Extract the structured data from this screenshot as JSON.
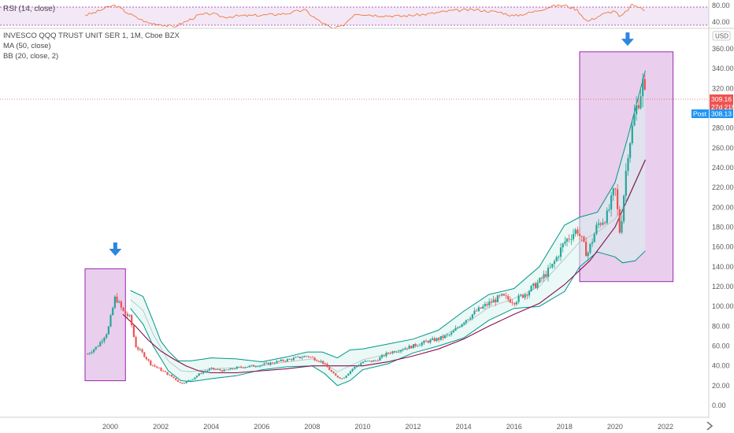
{
  "rsi": {
    "label": "RSI (14, close)",
    "ticks": [
      "80.00",
      "40.00"
    ],
    "color": "#f0783c",
    "band_color": "#9c27b0"
  },
  "legend": {
    "title": "INVESCO QQQ TRUST UNIT SER 1, 1M, Cboe BZX",
    "ma": "MA (50, close)",
    "bb": "BB (20, close, 2)"
  },
  "price_axis": {
    "currency": "USD",
    "last_price": "309.16",
    "countdown": "27d 21h",
    "post_label": "Post",
    "post_price": "308.13",
    "last_color": "#ef5350",
    "post_color": "#2196f3"
  },
  "colors": {
    "up": "#26a69a",
    "down": "#ef5350",
    "ma": "#880e4f",
    "bb_band": "#009688",
    "bb_fill": "#d9f2ef",
    "highlight_fill": "#e1bee7",
    "highlight_stroke": "#9c27b0",
    "arrow": "#2e86de"
  },
  "chart_data": {
    "type": "candlestick",
    "title": "INVESCO QQQ TRUST UNIT SER 1, 1M, Cboe BZX",
    "x_ticks": [
      "2000",
      "2002",
      "2004",
      "2006",
      "2008",
      "2010",
      "2012",
      "2014",
      "2016",
      "2018",
      "2020",
      "2022"
    ],
    "y_ticks": [
      "0.00",
      "20.00",
      "40.00",
      "60.00",
      "80.00",
      "100.00",
      "120.00",
      "140.00",
      "160.00",
      "180.00",
      "200.00",
      "220.00",
      "240.00",
      "260.00",
      "280.00",
      "300.00",
      "320.00",
      "340.00",
      "360.00"
    ],
    "x_range": [
      1998.7,
      2023.2
    ],
    "y_range": [
      -10,
      370
    ],
    "close_series": [
      [
        1999.1,
        52
      ],
      [
        1999.5,
        60
      ],
      [
        1999.9,
        75
      ],
      [
        2000.2,
        110
      ],
      [
        2000.5,
        95
      ],
      [
        2000.8,
        88
      ],
      [
        2001.0,
        60
      ],
      [
        2001.3,
        52
      ],
      [
        2001.6,
        42
      ],
      [
        2002.0,
        36
      ],
      [
        2002.5,
        28
      ],
      [
        2002.8,
        22
      ],
      [
        2003.2,
        26
      ],
      [
        2003.6,
        33
      ],
      [
        2004.0,
        37
      ],
      [
        2004.5,
        35
      ],
      [
        2005.0,
        38
      ],
      [
        2006.0,
        41
      ],
      [
        2007.0,
        46
      ],
      [
        2007.8,
        50
      ],
      [
        2008.4,
        44
      ],
      [
        2008.9,
        30
      ],
      [
        2009.2,
        27
      ],
      [
        2009.6,
        37
      ],
      [
        2010.0,
        44
      ],
      [
        2010.5,
        45
      ],
      [
        2011.0,
        53
      ],
      [
        2012.0,
        60
      ],
      [
        2012.6,
        65
      ],
      [
        2013.0,
        67
      ],
      [
        2013.5,
        72
      ],
      [
        2014.0,
        85
      ],
      [
        2014.5,
        95
      ],
      [
        2015.0,
        103
      ],
      [
        2015.5,
        110
      ],
      [
        2016.0,
        105
      ],
      [
        2016.5,
        114
      ],
      [
        2017.0,
        125
      ],
      [
        2017.5,
        140
      ],
      [
        2018.0,
        165
      ],
      [
        2018.5,
        178
      ],
      [
        2018.9,
        152
      ],
      [
        2019.3,
        182
      ],
      [
        2019.7,
        192
      ],
      [
        2020.0,
        220
      ],
      [
        2020.2,
        172
      ],
      [
        2020.5,
        255
      ],
      [
        2020.8,
        296
      ],
      [
        2021.0,
        315
      ],
      [
        2021.1,
        325
      ],
      [
        2021.2,
        309
      ]
    ],
    "ma_series": [
      [
        2000.5,
        92
      ],
      [
        2001.0,
        80
      ],
      [
        2001.5,
        66
      ],
      [
        2002.0,
        55
      ],
      [
        2002.5,
        47
      ],
      [
        2003.0,
        40
      ],
      [
        2003.5,
        35
      ],
      [
        2004.0,
        33
      ],
      [
        2005.0,
        33
      ],
      [
        2006.0,
        35
      ],
      [
        2007.0,
        37
      ],
      [
        2008.0,
        40
      ],
      [
        2009.0,
        40
      ],
      [
        2010.0,
        40
      ],
      [
        2011.0,
        44
      ],
      [
        2012.0,
        50
      ],
      [
        2013.0,
        57
      ],
      [
        2014.0,
        67
      ],
      [
        2015.0,
        80
      ],
      [
        2016.0,
        92
      ],
      [
        2017.0,
        103
      ],
      [
        2018.0,
        122
      ],
      [
        2019.0,
        146
      ],
      [
        2020.0,
        180
      ],
      [
        2021.2,
        248
      ]
    ],
    "bb_upper": [
      [
        2000.8,
        116
      ],
      [
        2001.3,
        110
      ],
      [
        2001.7,
        85
      ],
      [
        2002.0,
        65
      ],
      [
        2002.3,
        55
      ],
      [
        2002.7,
        45
      ],
      [
        2003.2,
        45
      ],
      [
        2004.0,
        48
      ],
      [
        2005.0,
        47
      ],
      [
        2006.0,
        44
      ],
      [
        2007.0,
        49
      ],
      [
        2007.8,
        54
      ],
      [
        2008.4,
        54
      ],
      [
        2009.0,
        48
      ],
      [
        2009.5,
        56
      ],
      [
        2010.0,
        57
      ],
      [
        2011.0,
        62
      ],
      [
        2012.0,
        67
      ],
      [
        2013.0,
        76
      ],
      [
        2014.0,
        95
      ],
      [
        2015.0,
        112
      ],
      [
        2016.0,
        118
      ],
      [
        2017.0,
        140
      ],
      [
        2018.0,
        182
      ],
      [
        2018.6,
        190
      ],
      [
        2019.3,
        195
      ],
      [
        2020.0,
        225
      ],
      [
        2020.5,
        270
      ],
      [
        2021.2,
        338
      ]
    ],
    "bb_lower": [
      [
        2000.8,
        98
      ],
      [
        2001.3,
        82
      ],
      [
        2001.7,
        60
      ],
      [
        2002.3,
        35
      ],
      [
        2002.8,
        25
      ],
      [
        2003.2,
        24
      ],
      [
        2004.0,
        27
      ],
      [
        2005.0,
        30
      ],
      [
        2006.0,
        36
      ],
      [
        2007.0,
        39
      ],
      [
        2008.0,
        40
      ],
      [
        2008.5,
        32
      ],
      [
        2009.0,
        20
      ],
      [
        2009.5,
        25
      ],
      [
        2010.0,
        36
      ],
      [
        2011.0,
        42
      ],
      [
        2012.0,
        53
      ],
      [
        2013.0,
        60
      ],
      [
        2014.0,
        68
      ],
      [
        2015.0,
        86
      ],
      [
        2016.0,
        98
      ],
      [
        2017.0,
        100
      ],
      [
        2018.0,
        115
      ],
      [
        2018.6,
        140
      ],
      [
        2019.3,
        155
      ],
      [
        2020.0,
        150
      ],
      [
        2020.3,
        144
      ],
      [
        2020.8,
        146
      ],
      [
        2021.2,
        156
      ]
    ],
    "bb_basis": [
      [
        2000.8,
        107
      ],
      [
        2001.3,
        96
      ],
      [
        2001.7,
        72
      ],
      [
        2002.3,
        45
      ],
      [
        2002.8,
        35
      ],
      [
        2003.2,
        34
      ],
      [
        2004.0,
        37
      ],
      [
        2005.0,
        38
      ],
      [
        2006.0,
        40
      ],
      [
        2007.0,
        44
      ],
      [
        2008.0,
        47
      ],
      [
        2008.5,
        42
      ],
      [
        2009.0,
        34
      ],
      [
        2009.5,
        40
      ],
      [
        2010.0,
        46
      ],
      [
        2011.0,
        52
      ],
      [
        2012.0,
        60
      ],
      [
        2013.0,
        68
      ],
      [
        2014.0,
        81
      ],
      [
        2015.0,
        99
      ],
      [
        2016.0,
        108
      ],
      [
        2017.0,
        120
      ],
      [
        2018.0,
        148
      ],
      [
        2018.6,
        165
      ],
      [
        2019.3,
        175
      ],
      [
        2020.0,
        188
      ],
      [
        2020.5,
        207
      ],
      [
        2021.2,
        247
      ]
    ],
    "highlights": [
      {
        "x": [
          1999.0,
          2000.6
        ],
        "y": [
          25,
          138
        ]
      },
      {
        "x": [
          2018.6,
          2022.3
        ],
        "y": [
          125,
          357
        ]
      }
    ],
    "arrows": [
      {
        "x": 2000.2,
        "y": 155
      },
      {
        "x": 2020.5,
        "y": 367
      }
    ],
    "rsi_series": [
      [
        1999.0,
        62
      ],
      [
        1999.4,
        68
      ],
      [
        1999.9,
        80
      ],
      [
        2000.2,
        84
      ],
      [
        2000.6,
        70
      ],
      [
        2001.0,
        58
      ],
      [
        2001.5,
        45
      ],
      [
        2002.0,
        42
      ],
      [
        2002.5,
        36
      ],
      [
        2003.0,
        48
      ],
      [
        2003.5,
        62
      ],
      [
        2004.0,
        66
      ],
      [
        2004.5,
        58
      ],
      [
        2005.0,
        60
      ],
      [
        2006.0,
        62
      ],
      [
        2007.0,
        66
      ],
      [
        2007.7,
        74
      ],
      [
        2008.2,
        52
      ],
      [
        2008.8,
        32
      ],
      [
        2009.2,
        38
      ],
      [
        2009.7,
        66
      ],
      [
        2010.5,
        62
      ],
      [
        2011.5,
        60
      ],
      [
        2012.5,
        64
      ],
      [
        2013.5,
        72
      ],
      [
        2014.5,
        74
      ],
      [
        2015.5,
        68
      ],
      [
        2016.0,
        60
      ],
      [
        2016.8,
        70
      ],
      [
        2017.5,
        82
      ],
      [
        2018.0,
        84
      ],
      [
        2018.5,
        74
      ],
      [
        2018.9,
        48
      ],
      [
        2019.5,
        64
      ],
      [
        2020.0,
        72
      ],
      [
        2020.2,
        56
      ],
      [
        2020.7,
        86
      ],
      [
        2021.0,
        78
      ],
      [
        2021.2,
        72
      ]
    ]
  }
}
